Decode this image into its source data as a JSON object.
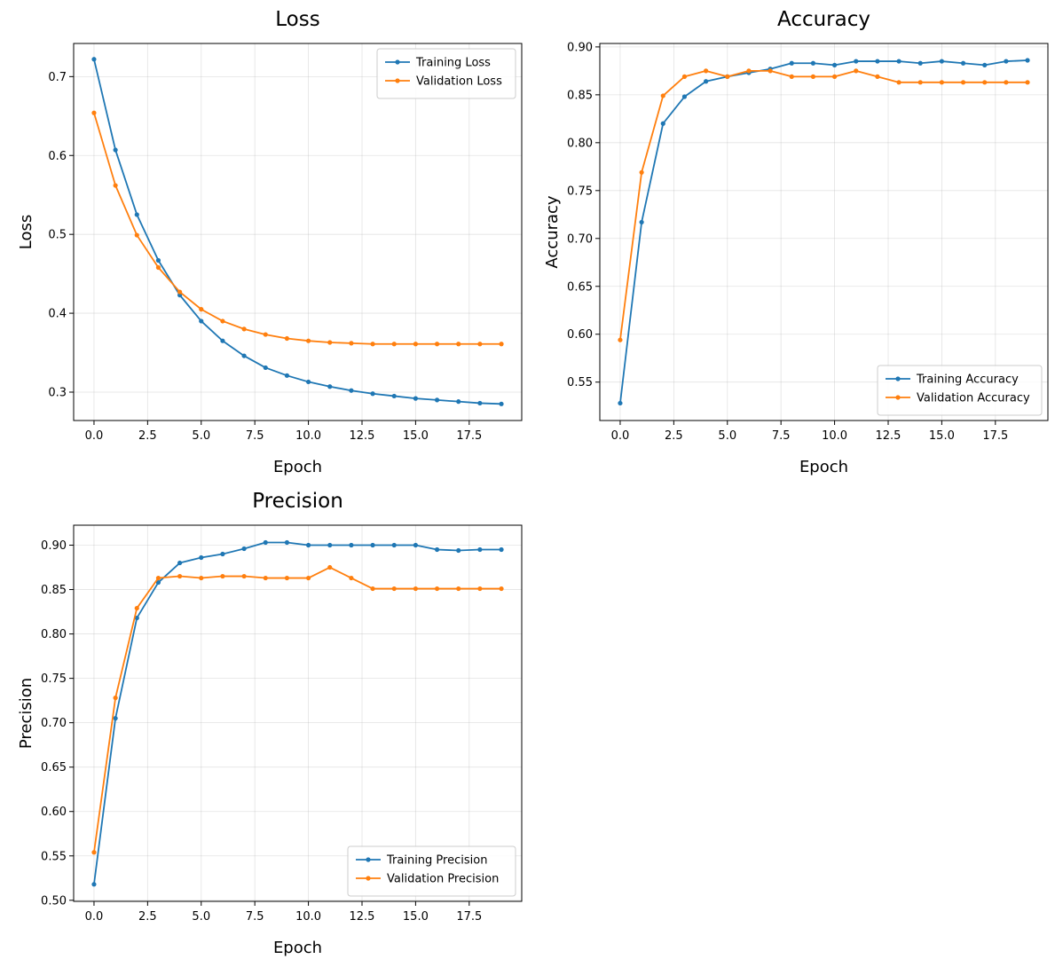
{
  "colors": {
    "training": "#1f77b4",
    "validation": "#ff7f0e"
  },
  "chart_data": [
    {
      "type": "line",
      "title": "Loss",
      "xlabel": "Epoch",
      "ylabel": "Loss",
      "xlim": [
        -0.95,
        19.95
      ],
      "ylim": [
        0.264,
        0.742
      ],
      "xticks": [
        0,
        2.5,
        5,
        7.5,
        10,
        12.5,
        15,
        17.5
      ],
      "xtick_labels": [
        "0.0",
        "2.5",
        "5.0",
        "7.5",
        "10.0",
        "12.5",
        "15.0",
        "17.5"
      ],
      "yticks": [
        0.3,
        0.4,
        0.5,
        0.6,
        0.7
      ],
      "ytick_labels": [
        "0.3",
        "0.4",
        "0.5",
        "0.6",
        "0.7"
      ],
      "grid": true,
      "legend_position": "upper right",
      "x": [
        0,
        1,
        2,
        3,
        4,
        5,
        6,
        7,
        8,
        9,
        10,
        11,
        12,
        13,
        14,
        15,
        16,
        17,
        18,
        19
      ],
      "series": [
        {
          "name": "Training Loss",
          "color": "#1f77b4",
          "values": [
            0.722,
            0.607,
            0.525,
            0.467,
            0.423,
            0.39,
            0.365,
            0.346,
            0.331,
            0.321,
            0.313,
            0.307,
            0.302,
            0.298,
            0.295,
            0.292,
            0.29,
            0.288,
            0.286,
            0.285
          ]
        },
        {
          "name": "Validation Loss",
          "color": "#ff7f0e",
          "values": [
            0.654,
            0.562,
            0.499,
            0.458,
            0.427,
            0.405,
            0.39,
            0.38,
            0.373,
            0.368,
            0.365,
            0.363,
            0.362,
            0.361,
            0.361,
            0.361,
            0.361,
            0.361,
            0.361,
            0.361
          ]
        }
      ]
    },
    {
      "type": "line",
      "title": "Accuracy",
      "xlabel": "Epoch",
      "ylabel": "Accuracy",
      "xlim": [
        -0.95,
        19.95
      ],
      "ylim": [
        0.5099,
        0.9036
      ],
      "xticks": [
        0,
        2.5,
        5,
        7.5,
        10,
        12.5,
        15,
        17.5
      ],
      "xtick_labels": [
        "0.0",
        "2.5",
        "5.0",
        "7.5",
        "10.0",
        "12.5",
        "15.0",
        "17.5"
      ],
      "yticks": [
        0.55,
        0.6,
        0.65,
        0.7,
        0.75,
        0.8,
        0.85,
        0.9
      ],
      "ytick_labels": [
        "0.55",
        "0.60",
        "0.65",
        "0.70",
        "0.75",
        "0.80",
        "0.85",
        "0.90"
      ],
      "grid": true,
      "legend_position": "lower right",
      "x": [
        0,
        1,
        2,
        3,
        4,
        5,
        6,
        7,
        8,
        9,
        10,
        11,
        12,
        13,
        14,
        15,
        16,
        17,
        18,
        19
      ],
      "series": [
        {
          "name": "Training Accuracy",
          "color": "#1f77b4",
          "values": [
            0.528,
            0.717,
            0.82,
            0.848,
            0.864,
            0.869,
            0.873,
            0.877,
            0.883,
            0.883,
            0.881,
            0.885,
            0.885,
            0.885,
            0.883,
            0.885,
            0.883,
            0.881,
            0.885,
            0.886
          ]
        },
        {
          "name": "Validation Accuracy",
          "color": "#ff7f0e",
          "values": [
            0.594,
            0.769,
            0.849,
            0.869,
            0.875,
            0.869,
            0.875,
            0.875,
            0.869,
            0.869,
            0.869,
            0.875,
            0.869,
            0.863,
            0.863,
            0.863,
            0.863,
            0.863,
            0.863,
            0.863
          ]
        }
      ]
    },
    {
      "type": "line",
      "title": "Precision",
      "xlabel": "Epoch",
      "ylabel": "Precision",
      "xlim": [
        -0.95,
        19.95
      ],
      "ylim": [
        0.4988,
        0.9225
      ],
      "xticks": [
        0,
        2.5,
        5,
        7.5,
        10,
        12.5,
        15,
        17.5
      ],
      "xtick_labels": [
        "0.0",
        "2.5",
        "5.0",
        "7.5",
        "10.0",
        "12.5",
        "15.0",
        "17.5"
      ],
      "yticks": [
        0.5,
        0.55,
        0.6,
        0.65,
        0.7,
        0.75,
        0.8,
        0.85,
        0.9
      ],
      "ytick_labels": [
        "0.50",
        "0.55",
        "0.60",
        "0.65",
        "0.70",
        "0.75",
        "0.80",
        "0.85",
        "0.90"
      ],
      "grid": true,
      "legend_position": "lower right",
      "x": [
        0,
        1,
        2,
        3,
        4,
        5,
        6,
        7,
        8,
        9,
        10,
        11,
        12,
        13,
        14,
        15,
        16,
        17,
        18,
        19
      ],
      "series": [
        {
          "name": "Training Precision",
          "color": "#1f77b4",
          "values": [
            0.518,
            0.705,
            0.818,
            0.858,
            0.88,
            0.886,
            0.89,
            0.896,
            0.903,
            0.903,
            0.9,
            0.9,
            0.9,
            0.9,
            0.9,
            0.9,
            0.895,
            0.894,
            0.895,
            0.895
          ]
        },
        {
          "name": "Validation Precision",
          "color": "#ff7f0e",
          "values": [
            0.554,
            0.728,
            0.829,
            0.863,
            0.865,
            0.863,
            0.865,
            0.865,
            0.863,
            0.863,
            0.863,
            0.875,
            0.863,
            0.851,
            0.851,
            0.851,
            0.851,
            0.851,
            0.851,
            0.851
          ]
        }
      ]
    }
  ]
}
